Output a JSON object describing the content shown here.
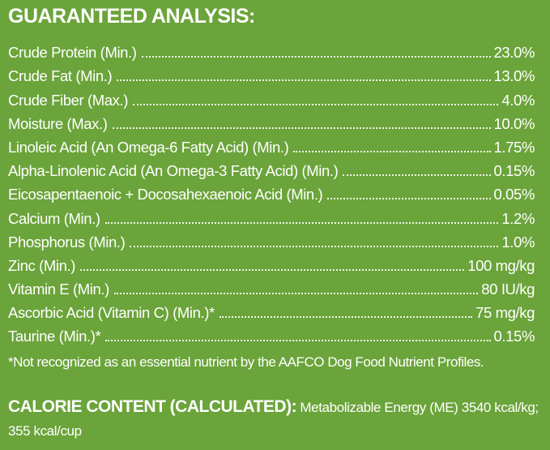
{
  "header": {
    "title": "GUARANTEED ANALYSIS:"
  },
  "rows": [
    {
      "label": "Crude Protein (Min.)",
      "value": "23.0%"
    },
    {
      "label": "Crude Fat (Min.)",
      "value": "13.0%"
    },
    {
      "label": "Crude Fiber (Max.)",
      "value": "4.0%"
    },
    {
      "label": "Moisture (Max.)",
      "value": "10.0%"
    },
    {
      "label": "Linoleic Acid (An Omega-6 Fatty Acid) (Min.)",
      "value": "1.75%"
    },
    {
      "label": "Alpha-Linolenic Acid (An Omega-3 Fatty Acid) (Min.)",
      "value": "0.15%"
    },
    {
      "label": "Eicosapentaenoic + Docosahexaenoic Acid (Min.)",
      "value": "0.05%"
    },
    {
      "label": "Calcium (Min.)",
      "value": "1.2%"
    },
    {
      "label": "Phosphorus (Min.)",
      "value": "1.0%"
    },
    {
      "label": "Zinc (Min.)",
      "value": "100 mg/kg"
    },
    {
      "label": "Vitamin E (Min.)",
      "value": "80 IU/kg"
    },
    {
      "label": "Ascorbic Acid (Vitamin C) (Min.)*",
      "value": "75 mg/kg"
    },
    {
      "label": "Taurine (Min.)*",
      "value": "0.15%"
    }
  ],
  "footnote": "*Not recognized as an essential nutrient by the AAFCO Dog Food Nutrient Profiles.",
  "calorie": {
    "heading": "CALORIE CONTENT (CALCULATED):",
    "text": "Metabolizable Energy (ME) 3540 kcal/kg; 355 kcal/cup"
  }
}
